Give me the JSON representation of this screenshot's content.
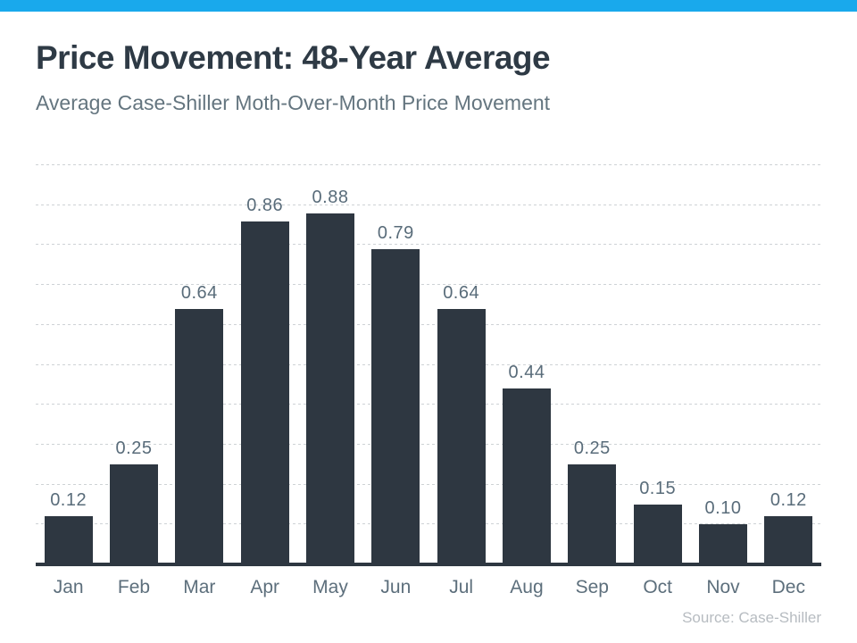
{
  "header": {
    "title": "Price Movement: 48-Year Average",
    "subtitle": "Average Case-Shiller Moth-Over-Month Price Movement"
  },
  "footer": {
    "source": "Source: Case-Shiller"
  },
  "colors": {
    "accent_topbar": "#19a9ec",
    "bar": "#2e3741",
    "title_text": "#2e3a45",
    "subtitle_text": "#64757f",
    "data_label_text": "#596c7a",
    "axis_label_text": "#5d6f7c",
    "gridline": "#ced2d5",
    "axis_line": "#2e3741",
    "source_text": "#b7bcc1"
  },
  "chart_data": {
    "type": "bar",
    "title": "Price Movement: 48-Year Average",
    "subtitle": "Average Case-Shiller Moth-Over-Month Price Movement",
    "categories": [
      "Jan",
      "Feb",
      "Mar",
      "Apr",
      "May",
      "Jun",
      "Jul",
      "Aug",
      "Sep",
      "Oct",
      "Nov",
      "Dec"
    ],
    "values": [
      0.12,
      0.25,
      0.64,
      0.86,
      0.88,
      0.79,
      0.64,
      0.44,
      0.25,
      0.15,
      0.1,
      0.12
    ],
    "value_labels": [
      "0.12",
      "0.25",
      "0.64",
      "0.86",
      "0.88",
      "0.79",
      "0.64",
      "0.44",
      "0.25",
      "0.15",
      "0.10",
      "0.12"
    ],
    "xlabel": "",
    "ylabel": "",
    "ylim": [
      0,
      1.0
    ],
    "gridline_step": 0.1,
    "grid": true,
    "legend": false,
    "data_labels": true,
    "y_tick_labels_shown": false,
    "source": "Source: Case-Shiller"
  }
}
